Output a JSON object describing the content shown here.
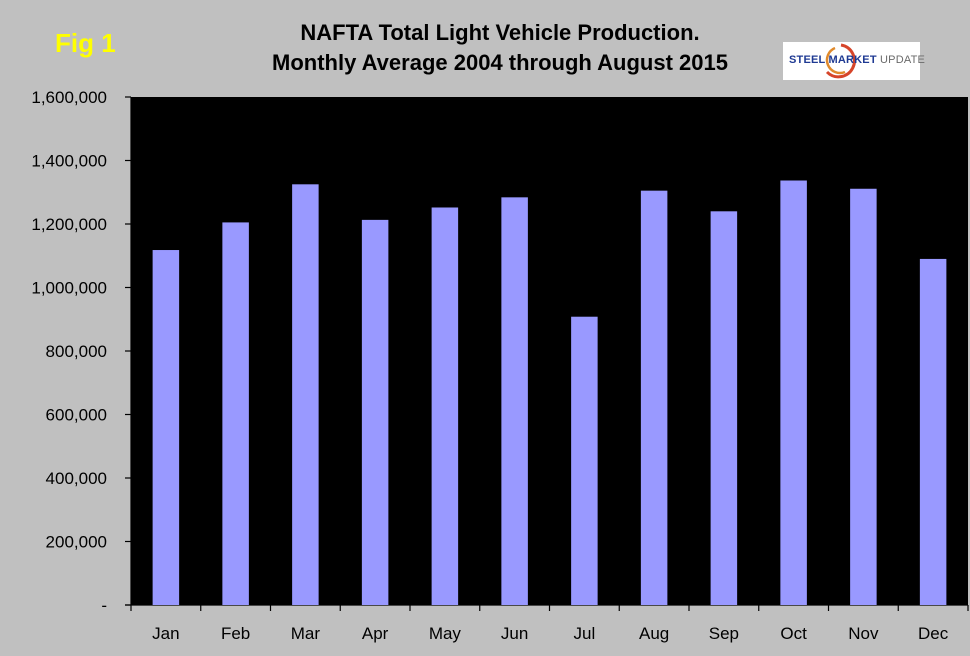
{
  "fig_label": "Fig 1",
  "logo": {
    "text_bold": "STEEL MARKET",
    "text_light": " UPDATE",
    "icon": "steel-market-update-swirl-icon"
  },
  "chart_data": {
    "type": "bar",
    "title": [
      "NAFTA Total Light Vehicle Production.",
      "Monthly Average 2004 through August 2015"
    ],
    "categories": [
      "Jan",
      "Feb",
      "Mar",
      "Apr",
      "May",
      "Jun",
      "Jul",
      "Aug",
      "Sep",
      "Oct",
      "Nov",
      "Dec"
    ],
    "values": [
      1118000,
      1205000,
      1325000,
      1213000,
      1252000,
      1284000,
      908000,
      1305000,
      1240000,
      1337000,
      1311000,
      1090000
    ],
    "ylim": [
      0,
      1600000
    ],
    "yticks": [
      0,
      200000,
      400000,
      600000,
      800000,
      1000000,
      1200000,
      1400000,
      1600000
    ],
    "ytick_labels": [
      "-",
      "200,000",
      "400,000",
      "600,000",
      "800,000",
      "1,000,000",
      "1,200,000",
      "1,400,000",
      "1,600,000"
    ],
    "xlabel": "",
    "ylabel": "",
    "grid": false,
    "colors": {
      "bar": "#9999ff",
      "plot_background": "#000000",
      "page_background": "#c0c0c0",
      "fig_label": "#ffff00"
    }
  }
}
